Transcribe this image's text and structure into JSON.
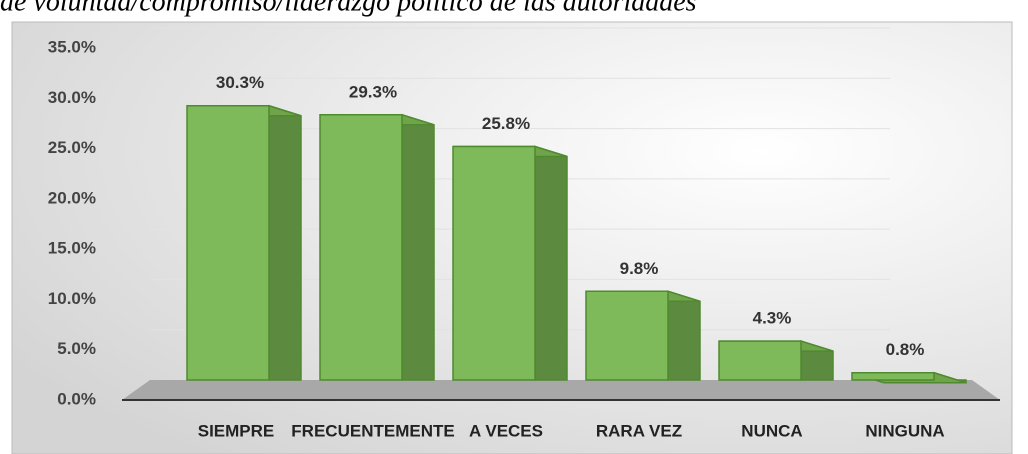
{
  "chart_data": {
    "type": "bar3d",
    "title": "de voluntad/compromiso/liderazgo político de las autoridades",
    "categories": [
      "SIEMPRE",
      "FRECUENTEMENTE",
      "A VECES",
      "RARA VEZ",
      "NUNCA",
      "NINGUNA"
    ],
    "values": [
      30.3,
      29.3,
      25.8,
      9.8,
      4.3,
      0.8
    ],
    "value_labels": [
      "30.3%",
      "29.3%",
      "25.8%",
      "9.8%",
      "4.3%",
      "0.8%"
    ],
    "color": "#7fba5a",
    "ylim": [
      0,
      35
    ],
    "yticks": [
      {
        "value": 0,
        "label": "0.0%"
      },
      {
        "value": 5,
        "label": "5.0%"
      },
      {
        "value": 10,
        "label": "10.0%"
      },
      {
        "value": 15,
        "label": "15.0%"
      },
      {
        "value": 20,
        "label": "20.0%"
      },
      {
        "value": 25,
        "label": "25.0%"
      },
      {
        "value": 30,
        "label": "30.0%"
      },
      {
        "value": 35,
        "label": "35.0%"
      }
    ],
    "grid": true
  }
}
